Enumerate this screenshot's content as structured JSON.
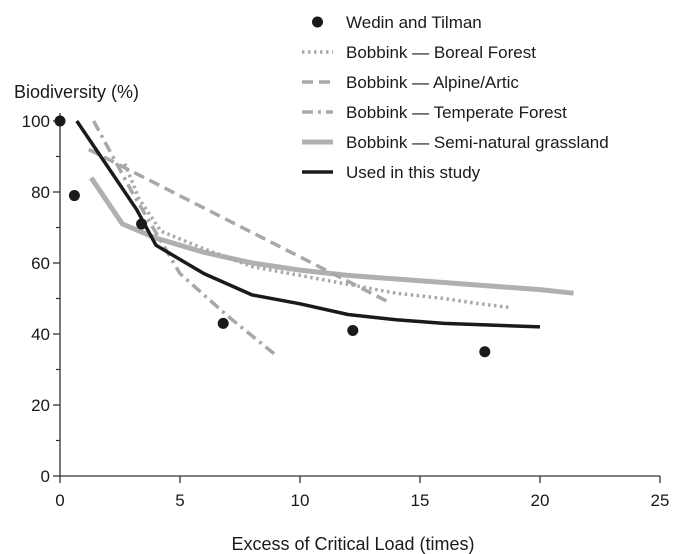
{
  "chart_data": {
    "type": "line",
    "title": "",
    "xlabel": "Excess of Critical Load (times)",
    "ylabel": "Biodiversity (%)",
    "xlim": [
      0,
      25
    ],
    "ylim": [
      0,
      100
    ],
    "xticks": [
      0,
      5,
      10,
      15,
      20,
      25
    ],
    "yticks": [
      0,
      20,
      40,
      60,
      80,
      100
    ],
    "grid": false,
    "legend_position": "top-right",
    "series": [
      {
        "name": "Wedin and Tilman",
        "kind": "scatter",
        "color": "#1a1a1a",
        "points": [
          [
            0,
            100
          ],
          [
            0.6,
            79
          ],
          [
            3.4,
            71
          ],
          [
            6.8,
            43
          ],
          [
            12.2,
            41
          ],
          [
            17.7,
            35
          ]
        ]
      },
      {
        "name": "Bobbink — Boreal Forest",
        "kind": "line",
        "style": "dotted",
        "color": "#a8a8a8",
        "points": [
          [
            2.7,
            88
          ],
          [
            3.3,
            78
          ],
          [
            4.2,
            69
          ],
          [
            6,
            64
          ],
          [
            8,
            59
          ],
          [
            10,
            56.5
          ],
          [
            12,
            54
          ],
          [
            14,
            51.5
          ],
          [
            16,
            50
          ],
          [
            17.5,
            48.5
          ],
          [
            18.7,
            47.5
          ]
        ]
      },
      {
        "name": "Bobbink — Alpine/Artic",
        "kind": "line",
        "style": "dashed",
        "color": "#a8a8a8",
        "points": [
          [
            1.2,
            92
          ],
          [
            13.7,
            49
          ]
        ]
      },
      {
        "name": "Bobbink — Temperate Forest",
        "kind": "line",
        "style": "dashdot",
        "color": "#a8a8a8",
        "points": [
          [
            1.4,
            100
          ],
          [
            3,
            80
          ],
          [
            5,
            57
          ],
          [
            7,
            45
          ],
          [
            9,
            34
          ]
        ]
      },
      {
        "name": "Bobbink — Semi-natural grassland",
        "kind": "line",
        "style": "solid-thick",
        "color": "#b0b0b0",
        "points": [
          [
            1.3,
            84
          ],
          [
            2.6,
            71
          ],
          [
            4,
            67
          ],
          [
            6,
            63
          ],
          [
            8,
            60
          ],
          [
            10,
            58
          ],
          [
            12,
            56.5
          ],
          [
            14,
            55.5
          ],
          [
            16,
            54.5
          ],
          [
            18,
            53.5
          ],
          [
            20,
            52.5
          ],
          [
            21.4,
            51.5
          ]
        ]
      },
      {
        "name": "Used in this study",
        "kind": "line",
        "style": "solid",
        "color": "#1a1a1a",
        "points": [
          [
            0.7,
            100
          ],
          [
            2,
            87
          ],
          [
            3.2,
            75
          ],
          [
            4,
            65
          ],
          [
            6,
            57
          ],
          [
            8,
            51
          ],
          [
            10,
            48.5
          ],
          [
            12,
            45.5
          ],
          [
            14,
            44
          ],
          [
            16,
            43
          ],
          [
            18,
            42.5
          ],
          [
            20,
            42
          ]
        ]
      }
    ]
  }
}
